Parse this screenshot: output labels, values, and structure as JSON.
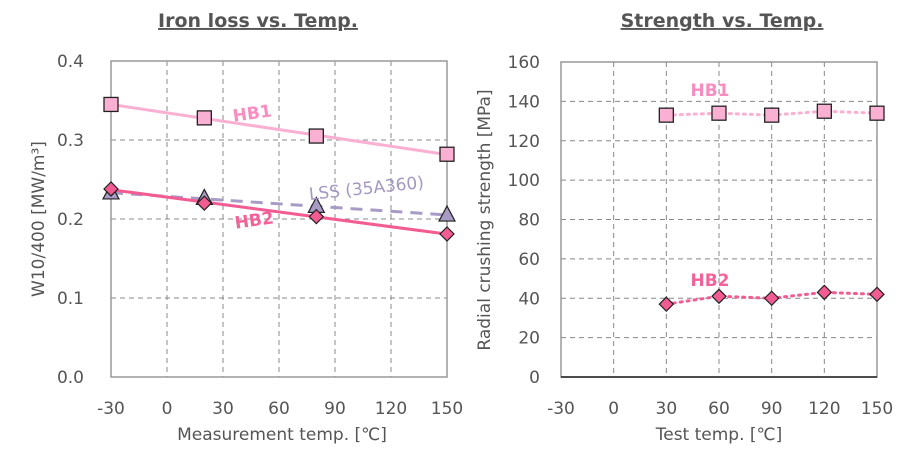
{
  "chart_data": [
    {
      "type": "scatter",
      "title": "Iron loss vs. Temp.",
      "xlabel": "Measurement temp. [℃]",
      "ylabel": "W10/400 [MW/m³]",
      "xlim": [
        -30,
        150
      ],
      "ylim": [
        0.0,
        0.4
      ],
      "xticks": [
        "-30",
        "0",
        "30",
        "60",
        "90",
        "120",
        "150"
      ],
      "yticks": [
        "0.0",
        "0.1",
        "0.2",
        "0.3",
        "0.4"
      ],
      "grid": true,
      "series": [
        {
          "name": "HB1",
          "x": [
            -30,
            20,
            80,
            150
          ],
          "y": [
            0.345,
            0.328,
            0.305,
            0.282
          ],
          "marker": "square",
          "line": "solid-trend",
          "color": "#f9b0d3",
          "label_color": "#f98dc0"
        },
        {
          "name": "LSS (35A360)",
          "x": [
            -30,
            20,
            80,
            150
          ],
          "y": [
            0.233,
            0.226,
            0.216,
            0.205
          ],
          "marker": "triangle",
          "line": "dashed-trend",
          "color": "#a89cc6",
          "label_color": "#a497c2"
        },
        {
          "name": "HB2",
          "x": [
            -30,
            20,
            80,
            150
          ],
          "y": [
            0.238,
            0.22,
            0.203,
            0.181
          ],
          "marker": "diamond",
          "line": "solid-trend",
          "color": "#f25c92",
          "label_color": "#f4629a"
        }
      ]
    },
    {
      "type": "scatter",
      "title": "Strength vs. Temp.",
      "xlabel": "Test temp. [℃]",
      "ylabel": "Radial crushing strength [MPa]",
      "xlim": [
        -30,
        150
      ],
      "ylim": [
        0,
        160
      ],
      "xticks": [
        "-30",
        "0",
        "30",
        "60",
        "90",
        "120",
        "150"
      ],
      "yticks": [
        "0",
        "20",
        "40",
        "60",
        "80",
        "100",
        "120",
        "140",
        "160"
      ],
      "grid": true,
      "series": [
        {
          "name": "HB1",
          "x": [
            30,
            60,
            90,
            120,
            150
          ],
          "y": [
            133,
            134,
            133,
            135,
            134
          ],
          "marker": "square",
          "line": "dotted",
          "color": "#f9b0d3",
          "label_color": "#f98dc0"
        },
        {
          "name": "HB2",
          "x": [
            30,
            60,
            90,
            120,
            150
          ],
          "y": [
            37,
            41,
            40,
            43,
            42
          ],
          "marker": "diamond",
          "line": "dotted",
          "color": "#f25c92",
          "label_color": "#f4629a"
        }
      ]
    }
  ]
}
